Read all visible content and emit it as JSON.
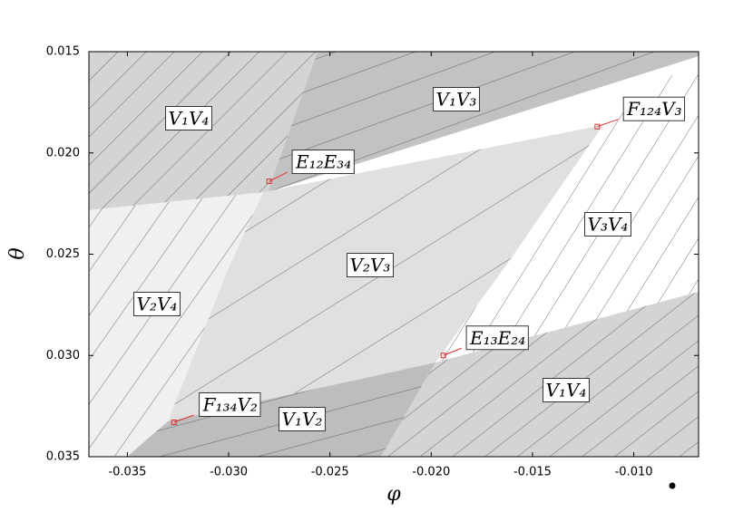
{
  "chart_data": {
    "type": "region",
    "x_label": "φ",
    "y_label": "θ",
    "xlim": [
      -0.0369,
      -0.0068
    ],
    "ylim": [
      0.015,
      0.035
    ],
    "y_inverted": true,
    "xticks": [
      -0.035,
      {
        "value": -0.03,
        "label": "-0.030"
      },
      -0.025,
      {
        "value": -0.02,
        "label": "-0.020"
      },
      -0.015,
      {
        "value": -0.01,
        "label": "-0.010"
      }
    ],
    "yticks": [
      0.015,
      {
        "value": 0.02,
        "label": "0.020"
      },
      0.025,
      {
        "value": 0.03,
        "label": "0.030"
      },
      0.035
    ],
    "regions": [
      "V₁V₄",
      "V₁V₃",
      "V₃V₄",
      "V₂V₃",
      "V₂V₄",
      "V₁V₂",
      "V₁V₄"
    ],
    "marker_color": "#e03030",
    "points": [
      {
        "label": "E₁₂E₃₄",
        "x": -0.028,
        "y": 0.0214
      },
      {
        "label": "F₁₂₄V₃",
        "x": -0.0118,
        "y": 0.0187
      },
      {
        "label": "E₁₃E₂₄",
        "x": -0.0194,
        "y": 0.03
      },
      {
        "label": "F₁₃₄V₂",
        "x": -0.0327,
        "y": 0.0333
      }
    ]
  }
}
